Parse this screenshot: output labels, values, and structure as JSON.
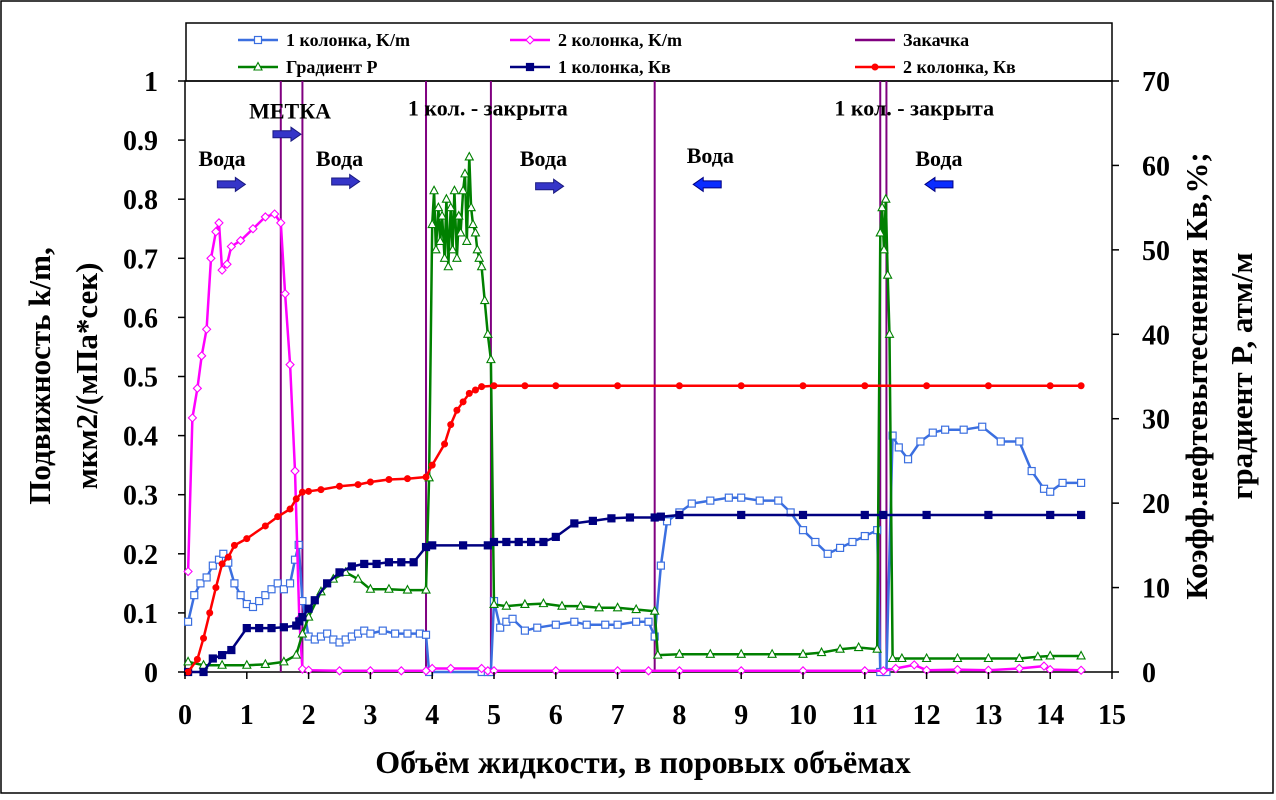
{
  "chart_data": {
    "type": "line",
    "xlabel": "Объём жидкости, в поровых объёмах",
    "ylabel_line1": "Подвижность k/m,",
    "ylabel_line2": "мкм2/(мПа*сек)",
    "y2label_line1": "Коэфф.нефтевытеснения Кв,%;",
    "y2label_line2": "градиент P, атм/м",
    "xlim": [
      0,
      15
    ],
    "ylim": [
      0,
      1
    ],
    "y2lim": [
      0,
      70
    ],
    "xticks": [
      "0",
      "1",
      "2",
      "3",
      "4",
      "5",
      "6",
      "7",
      "8",
      "9",
      "10",
      "11",
      "12",
      "13",
      "14",
      "15"
    ],
    "yticks": [
      "0",
      "0.1",
      "0.2",
      "0.3",
      "0.4",
      "0.5",
      "0.6",
      "0.7",
      "0.8",
      "0.9",
      "1"
    ],
    "y2ticks": [
      "0",
      "10",
      "20",
      "30",
      "40",
      "50",
      "60",
      "70"
    ],
    "grid": false,
    "legend_position": "top",
    "injection_lines_x": [
      1.55,
      1.9,
      3.9,
      4.95,
      7.6,
      11.25,
      11.35
    ],
    "annotations": [
      {
        "text": "МЕТКА",
        "x": 1.7,
        "y": 0.95
      },
      {
        "text": "Вода",
        "x": 0.6,
        "y": 0.87
      },
      {
        "text": "Вода",
        "x": 2.5,
        "y": 0.87
      },
      {
        "text": "Вода",
        "x": 5.8,
        "y": 0.87
      },
      {
        "text": "Вода",
        "x": 8.5,
        "y": 0.875
      },
      {
        "text": "Вода",
        "x": 12.2,
        "y": 0.87
      },
      {
        "text": "1 кол. - закрыта",
        "x": 4.9,
        "y": 0.955
      },
      {
        "text": "1 кол. - закрыта",
        "x": 11.8,
        "y": 0.955
      }
    ],
    "arrows": [
      {
        "x": 0.75,
        "y": 0.825,
        "dir": "right"
      },
      {
        "x": 1.65,
        "y": 0.91,
        "dir": "right"
      },
      {
        "x": 2.6,
        "y": 0.83,
        "dir": "right"
      },
      {
        "x": 5.9,
        "y": 0.822,
        "dir": "right"
      },
      {
        "x": 8.45,
        "y": 0.825,
        "dir": "left"
      },
      {
        "x": 12.2,
        "y": 0.825,
        "dir": "left"
      }
    ],
    "series": [
      {
        "name": "1 колонка, K/m",
        "axis": "left",
        "color": "#3b6fe0",
        "marker": "square",
        "x": [
          0.05,
          0.15,
          0.25,
          0.35,
          0.45,
          0.55,
          0.62,
          0.7,
          0.8,
          0.9,
          1.0,
          1.1,
          1.2,
          1.3,
          1.4,
          1.5,
          1.6,
          1.7,
          1.78,
          1.84,
          1.9,
          2.0,
          2.1,
          2.2,
          2.3,
          2.4,
          2.5,
          2.6,
          2.7,
          2.8,
          2.9,
          3.0,
          3.2,
          3.4,
          3.6,
          3.8,
          3.9,
          3.95,
          4.8,
          4.9,
          4.95,
          5.0,
          5.1,
          5.2,
          5.3,
          5.5,
          5.7,
          6.0,
          6.3,
          6.5,
          6.8,
          7.0,
          7.3,
          7.5,
          7.6,
          7.7,
          7.8,
          8.0,
          8.2,
          8.5,
          8.8,
          9.0,
          9.3,
          9.6,
          9.8,
          10.0,
          10.2,
          10.4,
          10.6,
          10.8,
          11.0,
          11.2,
          11.25,
          11.35,
          11.45,
          11.55,
          11.7,
          11.9,
          12.1,
          12.3,
          12.6,
          12.9,
          13.2,
          13.5,
          13.7,
          13.9,
          14.0,
          14.2,
          14.5
        ],
        "y": [
          0.085,
          0.13,
          0.15,
          0.16,
          0.18,
          0.19,
          0.2,
          0.185,
          0.15,
          0.13,
          0.115,
          0.11,
          0.12,
          0.13,
          0.14,
          0.15,
          0.14,
          0.15,
          0.19,
          0.215,
          0.12,
          0.06,
          0.055,
          0.06,
          0.065,
          0.055,
          0.05,
          0.055,
          0.06,
          0.065,
          0.07,
          0.065,
          0.07,
          0.065,
          0.065,
          0.065,
          0.063,
          0.0,
          0.0,
          0.0,
          0.0,
          0.12,
          0.075,
          0.085,
          0.09,
          0.07,
          0.075,
          0.08,
          0.085,
          0.08,
          0.08,
          0.08,
          0.085,
          0.085,
          0.06,
          0.18,
          0.255,
          0.27,
          0.285,
          0.29,
          0.295,
          0.295,
          0.29,
          0.29,
          0.27,
          0.24,
          0.22,
          0.2,
          0.21,
          0.22,
          0.23,
          0.24,
          0.0,
          0.0,
          0.4,
          0.38,
          0.36,
          0.39,
          0.405,
          0.41,
          0.41,
          0.415,
          0.39,
          0.39,
          0.34,
          0.31,
          0.305,
          0.32,
          0.32
        ]
      },
      {
        "name": "2 колонка, K/m",
        "axis": "left",
        "color": "#ff00ff",
        "marker": "diamond",
        "x": [
          0.05,
          0.12,
          0.2,
          0.27,
          0.35,
          0.42,
          0.5,
          0.55,
          0.6,
          0.68,
          0.75,
          0.9,
          1.1,
          1.3,
          1.45,
          1.55,
          1.62,
          1.7,
          1.78,
          1.85,
          1.9,
          2.0,
          2.5,
          3.0,
          3.5,
          3.9,
          4.0,
          4.3,
          4.8,
          4.9,
          5.0,
          6.0,
          7.0,
          7.5,
          8.0,
          9.0,
          10.0,
          11.0,
          11.3,
          11.5,
          11.8,
          12.0,
          12.5,
          13.0,
          13.5,
          13.9,
          14.0,
          14.5
        ],
        "y": [
          0.17,
          0.43,
          0.48,
          0.535,
          0.58,
          0.7,
          0.745,
          0.76,
          0.68,
          0.69,
          0.72,
          0.73,
          0.75,
          0.77,
          0.775,
          0.76,
          0.64,
          0.52,
          0.34,
          0.09,
          0.005,
          0.003,
          0.002,
          0.002,
          0.002,
          0.002,
          0.006,
          0.006,
          0.006,
          0.002,
          0.002,
          0.002,
          0.002,
          0.002,
          0.002,
          0.002,
          0.002,
          0.002,
          0.002,
          0.006,
          0.012,
          0.003,
          0.004,
          0.003,
          0.006,
          0.01,
          0.004,
          0.003
        ]
      },
      {
        "name": "Закачка",
        "axis": "left",
        "color": "#800080",
        "marker": "none",
        "x": [],
        "y": []
      },
      {
        "name": "Градиент P",
        "axis": "right",
        "color": "#008000",
        "marker": "triangle",
        "x": [
          0.05,
          0.3,
          0.6,
          1.0,
          1.3,
          1.6,
          1.8,
          1.9,
          2.0,
          2.2,
          2.4,
          2.6,
          2.8,
          3.0,
          3.3,
          3.6,
          3.9,
          3.95,
          4.0,
          4.03,
          4.06,
          4.1,
          4.13,
          4.16,
          4.2,
          4.23,
          4.26,
          4.3,
          4.33,
          4.36,
          4.4,
          4.43,
          4.46,
          4.5,
          4.53,
          4.56,
          4.6,
          4.63,
          4.66,
          4.7,
          4.73,
          4.76,
          4.8,
          4.85,
          4.9,
          4.95,
          5.0,
          5.2,
          5.5,
          5.8,
          6.1,
          6.4,
          6.7,
          7.0,
          7.3,
          7.6,
          7.65,
          8.0,
          8.5,
          9.0,
          9.5,
          10.0,
          10.3,
          10.6,
          10.9,
          11.2,
          11.25,
          11.28,
          11.31,
          11.34,
          11.37,
          11.4,
          11.45,
          11.6,
          12.0,
          12.5,
          13.0,
          13.5,
          13.8,
          14.0,
          14.5
        ],
        "y": [
          1.2,
          0.8,
          0.8,
          0.8,
          0.9,
          1.2,
          2.0,
          4.5,
          6.5,
          9.5,
          11.0,
          11.8,
          11.0,
          9.8,
          9.8,
          9.7,
          9.7,
          23,
          53,
          57,
          50,
          55,
          51,
          54,
          49,
          56,
          48,
          55,
          50,
          57,
          49,
          54,
          52,
          57,
          59,
          51,
          61,
          55,
          53,
          52,
          50,
          49,
          48,
          44,
          40,
          37,
          8.0,
          7.8,
          8.0,
          8.1,
          7.8,
          7.8,
          7.6,
          7.6,
          7.4,
          7.2,
          2.0,
          2.1,
          2.1,
          2.1,
          2.1,
          2.1,
          2.3,
          2.7,
          2.9,
          2.7,
          52,
          55,
          50,
          56,
          47,
          40,
          1.6,
          1.6,
          1.6,
          1.6,
          1.6,
          1.6,
          1.8,
          1.9,
          1.9
        ]
      },
      {
        "name": "1 колонка, Кв",
        "axis": "right",
        "color": "#000080",
        "marker": "square",
        "x": [
          0.05,
          0.3,
          0.45,
          0.6,
          0.75,
          1.0,
          1.2,
          1.4,
          1.6,
          1.8,
          1.85,
          1.9,
          2.0,
          2.1,
          2.3,
          2.5,
          2.7,
          2.9,
          3.1,
          3.3,
          3.5,
          3.7,
          3.9,
          4.0,
          4.5,
          4.9,
          5.0,
          5.2,
          5.4,
          5.6,
          5.8,
          6.0,
          6.3,
          6.6,
          6.9,
          7.2,
          7.6,
          7.7,
          8.0,
          9.0,
          10.0,
          11.0,
          11.3,
          12.0,
          13.0,
          14.0,
          14.5
        ],
        "y": [
          0,
          0,
          1.6,
          2.0,
          2.6,
          5.2,
          5.2,
          5.2,
          5.3,
          5.5,
          6.0,
          6.5,
          7.5,
          8.5,
          10.5,
          11.8,
          12.5,
          12.8,
          12.8,
          13.0,
          13.0,
          13.0,
          14.8,
          15.0,
          15.0,
          15.0,
          15.4,
          15.4,
          15.4,
          15.4,
          15.4,
          16.0,
          17.6,
          17.9,
          18.2,
          18.3,
          18.3,
          18.4,
          18.6,
          18.6,
          18.6,
          18.6,
          18.6,
          18.6,
          18.6,
          18.6,
          18.6
        ]
      },
      {
        "name": "2 колонка, Кв",
        "axis": "right",
        "color": "#ff0000",
        "marker": "dot",
        "x": [
          0.05,
          0.2,
          0.3,
          0.4,
          0.5,
          0.6,
          0.7,
          0.8,
          1.0,
          1.3,
          1.5,
          1.7,
          1.8,
          1.9,
          2.0,
          2.2,
          2.5,
          2.8,
          3.0,
          3.3,
          3.6,
          3.9,
          4.0,
          4.2,
          4.3,
          4.4,
          4.5,
          4.6,
          4.7,
          4.8,
          5.0,
          5.5,
          6.0,
          7.0,
          8.0,
          9.0,
          10.0,
          11.0,
          12.0,
          13.0,
          14.0,
          14.5
        ],
        "y": [
          0,
          1.5,
          4.0,
          7.0,
          10.0,
          12.8,
          13.6,
          15.0,
          15.8,
          17.3,
          18.4,
          19.3,
          20.5,
          21.3,
          21.4,
          21.6,
          22.0,
          22.2,
          22.5,
          22.8,
          22.9,
          23.1,
          24.5,
          27.0,
          29.3,
          31.0,
          32.0,
          33.0,
          33.4,
          33.8,
          33.9,
          33.9,
          33.9,
          33.9,
          33.9,
          33.9,
          33.9,
          33.9,
          33.9,
          33.9,
          33.9,
          33.9
        ]
      }
    ]
  }
}
